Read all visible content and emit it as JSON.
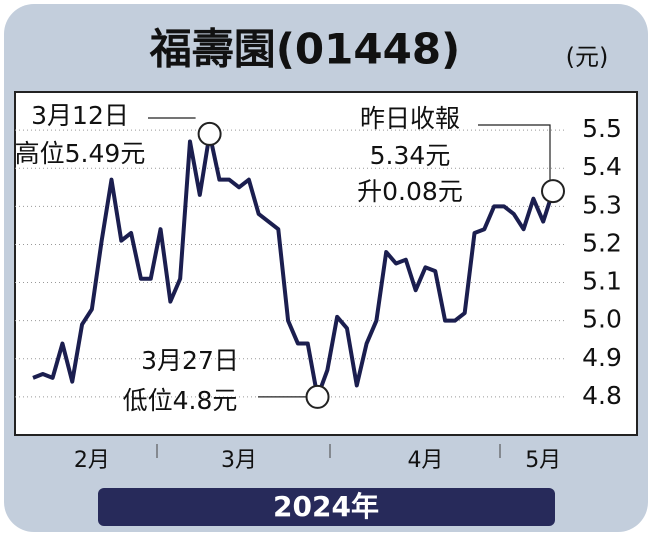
{
  "chart_data": {
    "type": "line",
    "title": "福壽園(01448)",
    "unit": "(元)",
    "footer": "2024年",
    "categories": [
      null,
      null,
      null,
      null,
      null,
      null,
      "2月",
      null,
      null,
      null,
      null,
      null,
      null,
      null,
      null,
      null,
      null,
      null,
      null,
      null,
      null,
      "3月",
      null,
      null,
      null,
      null,
      null,
      null,
      null,
      null,
      null,
      null,
      null,
      null,
      null,
      null,
      null,
      null,
      null,
      null,
      "4月",
      null,
      null,
      null,
      null,
      null,
      null,
      null,
      null,
      null,
      null,
      null,
      "5月",
      null
    ],
    "series": [
      {
        "name": "福壽園",
        "color": "#1b1e4f",
        "values": [
          4.85,
          4.86,
          4.85,
          4.94,
          4.84,
          4.99,
          5.03,
          5.21,
          5.37,
          5.21,
          5.23,
          5.11,
          5.11,
          5.24,
          5.05,
          5.11,
          5.47,
          5.33,
          5.49,
          5.37,
          5.37,
          5.35,
          5.37,
          5.28,
          5.26,
          5.24,
          5.0,
          4.94,
          4.94,
          4.8,
          4.87,
          5.01,
          4.98,
          4.83,
          4.94,
          5.0,
          5.18,
          5.15,
          5.16,
          5.08,
          5.14,
          5.13,
          5.0,
          5.0,
          5.02,
          5.23,
          5.24,
          5.3,
          5.3,
          5.28,
          5.24,
          5.32,
          5.26,
          5.34
        ]
      }
    ],
    "ylim": [
      4.7,
      5.6
    ],
    "yticks": [
      4.8,
      {
        "value": 4.9,
        "label": "4.9"
      },
      {
        "value": 5.0,
        "label": "5.0"
      },
      5.1,
      5.2,
      5.3,
      5.4,
      5.5
    ],
    "grid": true,
    "annotations": [
      {
        "lines": [
          "3月12日",
          "高位5.49元"
        ]
      },
      {
        "lines": [
          "3月27日",
          "低位4.8元"
        ]
      },
      {
        "lines": [
          "昨日收報",
          "5.34元",
          "升0.08元"
        ]
      }
    ]
  }
}
